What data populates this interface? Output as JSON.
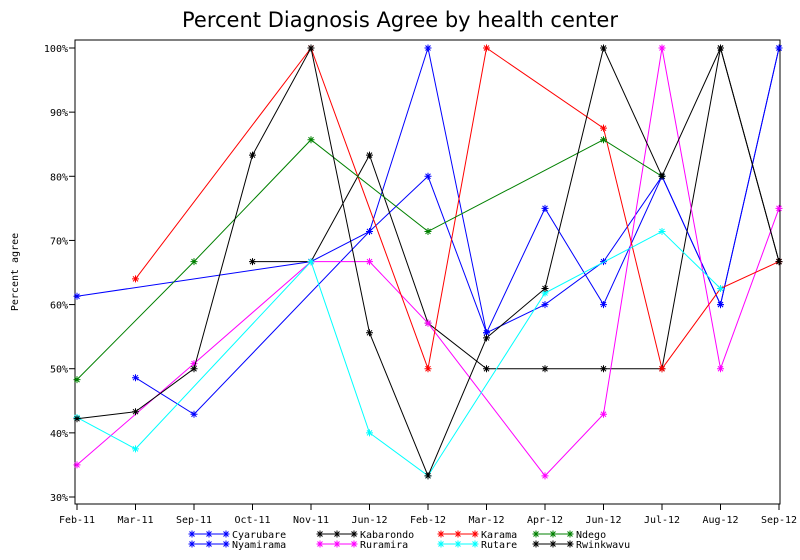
{
  "chart_data": {
    "type": "line",
    "title": "Percent Diagnosis Agree by health center",
    "ylabel": "Percent agree",
    "xlabel": "",
    "ylim": [
      30,
      100
    ],
    "yticks": [
      "30%",
      "40%",
      "50%",
      "60%",
      "70%",
      "80%",
      "90%",
      "100%"
    ],
    "categories": [
      "Feb-11",
      "Mar-11",
      "Sep-11",
      "Oct-11",
      "Nov-11",
      "Jun-12",
      "Feb-12",
      "Mar-12",
      "Apr-12",
      "Jun-12",
      "Jul-12",
      "Aug-12",
      "Sep-12"
    ],
    "series": [
      {
        "name": "Cyarubare",
        "color": "#0000ff",
        "values": [
          null,
          48.6,
          42.9,
          null,
          null,
          71.4,
          100,
          55.6,
          75,
          60,
          80,
          60,
          100
        ]
      },
      {
        "name": "Nyamirama",
        "color": "#0000ff",
        "values": [
          61.3,
          null,
          null,
          null,
          66.7,
          71.4,
          80,
          55.6,
          60,
          66.7,
          80,
          60,
          100
        ]
      },
      {
        "name": "Kabarondo",
        "color": "#000000",
        "values": [
          null,
          null,
          null,
          66.7,
          66.7,
          83.3,
          57.1,
          50,
          50,
          50,
          50,
          100,
          66.7
        ]
      },
      {
        "name": "Ruramira",
        "color": "#ff00ff",
        "values": [
          35,
          null,
          50.8,
          null,
          66.7,
          66.7,
          57.1,
          null,
          33.3,
          42.9,
          100,
          50,
          75
        ]
      },
      {
        "name": "Karama",
        "color": "#ff0000",
        "values": [
          null,
          64,
          null,
          null,
          100,
          null,
          50,
          100,
          null,
          87.5,
          50,
          62.5,
          66.7
        ]
      },
      {
        "name": "Rutare",
        "color": "#00ffff",
        "values": [
          42.4,
          37.5,
          null,
          null,
          66.7,
          40,
          33.3,
          null,
          61.8,
          null,
          71.4,
          62.5,
          null
        ]
      },
      {
        "name": "Ndego",
        "color": "#008000",
        "values": [
          48.3,
          null,
          66.7,
          null,
          85.7,
          null,
          71.4,
          null,
          null,
          85.7,
          80,
          null,
          null
        ]
      },
      {
        "name": "Rwinkwavu",
        "color": "#000000",
        "values": [
          42.2,
          43.3,
          50,
          83.3,
          100,
          55.6,
          33.3,
          54.8,
          62.5,
          100,
          80,
          100,
          66.7
        ]
      }
    ],
    "grid": false,
    "legend_position": "bottom"
  }
}
